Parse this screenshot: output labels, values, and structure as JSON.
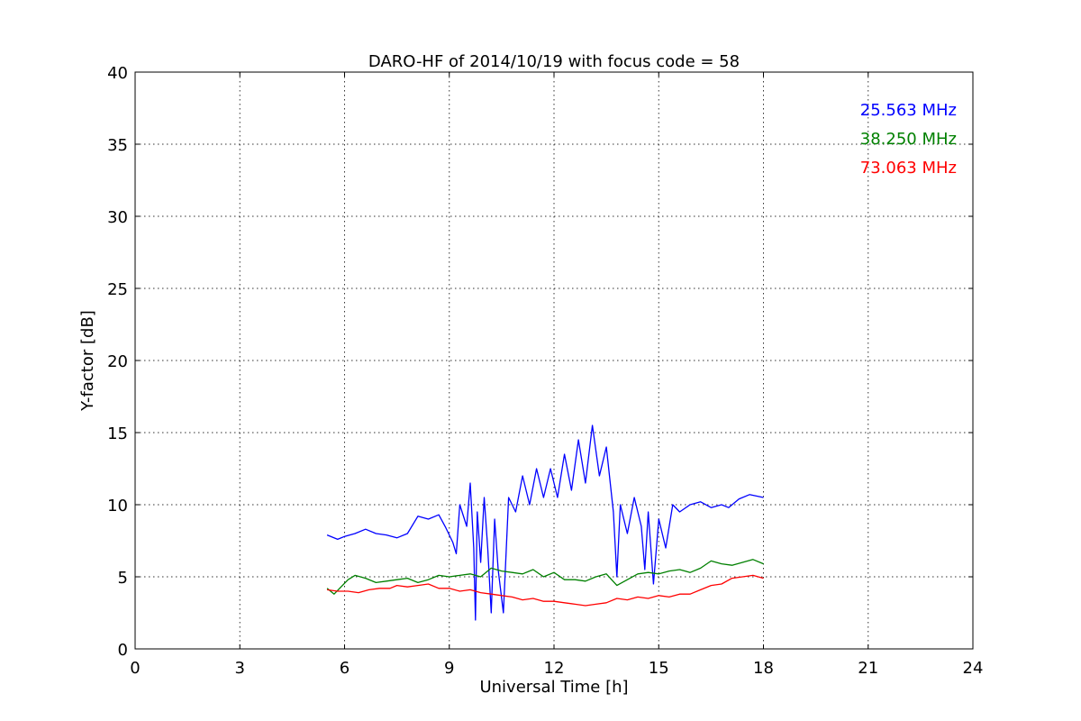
{
  "chart_data": {
    "type": "line",
    "title": "DARO-HF of 2014/10/19 with focus code = 58",
    "xlabel": "Universal Time [h]",
    "ylabel": "Y-factor [dB]",
    "xlim": [
      0,
      24
    ],
    "ylim": [
      0,
      40
    ],
    "xticks": [
      0,
      3,
      6,
      9,
      12,
      15,
      18,
      21,
      24
    ],
    "yticks": [
      0,
      5,
      10,
      15,
      20,
      25,
      30,
      35,
      40
    ],
    "grid": true,
    "legend_position": "top-right",
    "series": [
      {
        "name": "25.563 MHz",
        "color": "#0000ff",
        "points": [
          [
            5.5,
            7.9
          ],
          [
            5.8,
            7.6
          ],
          [
            6.0,
            7.8
          ],
          [
            6.3,
            8.0
          ],
          [
            6.6,
            8.3
          ],
          [
            6.9,
            8.0
          ],
          [
            7.2,
            7.9
          ],
          [
            7.5,
            7.7
          ],
          [
            7.8,
            8.0
          ],
          [
            8.1,
            9.2
          ],
          [
            8.4,
            9.0
          ],
          [
            8.7,
            9.3
          ],
          [
            8.9,
            8.4
          ],
          [
            9.1,
            7.4
          ],
          [
            9.2,
            6.6
          ],
          [
            9.3,
            10.0
          ],
          [
            9.5,
            8.5
          ],
          [
            9.6,
            11.5
          ],
          [
            9.7,
            7.0
          ],
          [
            9.75,
            2.0
          ],
          [
            9.8,
            9.5
          ],
          [
            9.9,
            6.0
          ],
          [
            10.0,
            10.5
          ],
          [
            10.1,
            7.0
          ],
          [
            10.2,
            2.5
          ],
          [
            10.3,
            9.0
          ],
          [
            10.4,
            5.5
          ],
          [
            10.55,
            2.5
          ],
          [
            10.7,
            10.5
          ],
          [
            10.9,
            9.5
          ],
          [
            11.1,
            12.0
          ],
          [
            11.3,
            10.0
          ],
          [
            11.5,
            12.5
          ],
          [
            11.7,
            10.5
          ],
          [
            11.9,
            12.5
          ],
          [
            12.1,
            10.5
          ],
          [
            12.3,
            13.5
          ],
          [
            12.5,
            11.0
          ],
          [
            12.7,
            14.5
          ],
          [
            12.9,
            11.5
          ],
          [
            13.1,
            15.5
          ],
          [
            13.3,
            12.0
          ],
          [
            13.5,
            14.0
          ],
          [
            13.7,
            9.5
          ],
          [
            13.8,
            5.0
          ],
          [
            13.9,
            10.0
          ],
          [
            14.1,
            8.0
          ],
          [
            14.3,
            10.5
          ],
          [
            14.5,
            8.5
          ],
          [
            14.6,
            5.5
          ],
          [
            14.7,
            9.5
          ],
          [
            14.85,
            4.5
          ],
          [
            15.0,
            9.0
          ],
          [
            15.2,
            7.0
          ],
          [
            15.4,
            10.0
          ],
          [
            15.6,
            9.5
          ],
          [
            15.9,
            10.0
          ],
          [
            16.2,
            10.2
          ],
          [
            16.5,
            9.8
          ],
          [
            16.8,
            10.0
          ],
          [
            17.0,
            9.8
          ],
          [
            17.3,
            10.4
          ],
          [
            17.6,
            10.7
          ],
          [
            18.0,
            10.5
          ]
        ]
      },
      {
        "name": "38.250 MHz",
        "color": "#008000",
        "points": [
          [
            5.5,
            4.2
          ],
          [
            5.7,
            3.8
          ],
          [
            5.9,
            4.3
          ],
          [
            6.1,
            4.8
          ],
          [
            6.3,
            5.1
          ],
          [
            6.6,
            4.9
          ],
          [
            6.9,
            4.6
          ],
          [
            7.2,
            4.7
          ],
          [
            7.5,
            4.8
          ],
          [
            7.8,
            4.9
          ],
          [
            8.1,
            4.6
          ],
          [
            8.4,
            4.8
          ],
          [
            8.7,
            5.1
          ],
          [
            9.0,
            5.0
          ],
          [
            9.3,
            5.1
          ],
          [
            9.6,
            5.2
          ],
          [
            9.9,
            5.0
          ],
          [
            10.2,
            5.6
          ],
          [
            10.5,
            5.4
          ],
          [
            10.8,
            5.3
          ],
          [
            11.1,
            5.2
          ],
          [
            11.4,
            5.5
          ],
          [
            11.7,
            5.0
          ],
          [
            12.0,
            5.3
          ],
          [
            12.3,
            4.8
          ],
          [
            12.6,
            4.8
          ],
          [
            12.9,
            4.7
          ],
          [
            13.2,
            5.0
          ],
          [
            13.5,
            5.2
          ],
          [
            13.8,
            4.4
          ],
          [
            14.1,
            4.8
          ],
          [
            14.4,
            5.2
          ],
          [
            14.7,
            5.3
          ],
          [
            15.0,
            5.2
          ],
          [
            15.3,
            5.4
          ],
          [
            15.6,
            5.5
          ],
          [
            15.9,
            5.3
          ],
          [
            16.2,
            5.6
          ],
          [
            16.5,
            6.1
          ],
          [
            16.8,
            5.9
          ],
          [
            17.1,
            5.8
          ],
          [
            17.4,
            6.0
          ],
          [
            17.7,
            6.2
          ],
          [
            18.0,
            5.9
          ]
        ]
      },
      {
        "name": "73.063 MHz",
        "color": "#ff0000",
        "points": [
          [
            5.5,
            4.1
          ],
          [
            5.8,
            4.0
          ],
          [
            6.1,
            4.0
          ],
          [
            6.4,
            3.9
          ],
          [
            6.7,
            4.1
          ],
          [
            7.0,
            4.2
          ],
          [
            7.3,
            4.2
          ],
          [
            7.5,
            4.4
          ],
          [
            7.8,
            4.3
          ],
          [
            8.1,
            4.4
          ],
          [
            8.4,
            4.5
          ],
          [
            8.7,
            4.2
          ],
          [
            9.0,
            4.2
          ],
          [
            9.3,
            4.0
          ],
          [
            9.6,
            4.1
          ],
          [
            9.9,
            3.9
          ],
          [
            10.2,
            3.8
          ],
          [
            10.5,
            3.7
          ],
          [
            10.8,
            3.6
          ],
          [
            11.1,
            3.4
          ],
          [
            11.4,
            3.5
          ],
          [
            11.7,
            3.3
          ],
          [
            12.0,
            3.3
          ],
          [
            12.3,
            3.2
          ],
          [
            12.6,
            3.1
          ],
          [
            12.9,
            3.0
          ],
          [
            13.2,
            3.1
          ],
          [
            13.5,
            3.2
          ],
          [
            13.8,
            3.5
          ],
          [
            14.1,
            3.4
          ],
          [
            14.4,
            3.6
          ],
          [
            14.7,
            3.5
          ],
          [
            15.0,
            3.7
          ],
          [
            15.3,
            3.6
          ],
          [
            15.6,
            3.8
          ],
          [
            15.9,
            3.8
          ],
          [
            16.2,
            4.1
          ],
          [
            16.5,
            4.4
          ],
          [
            16.8,
            4.5
          ],
          [
            17.1,
            4.9
          ],
          [
            17.4,
            5.0
          ],
          [
            17.7,
            5.1
          ],
          [
            18.0,
            4.9
          ]
        ]
      }
    ]
  }
}
